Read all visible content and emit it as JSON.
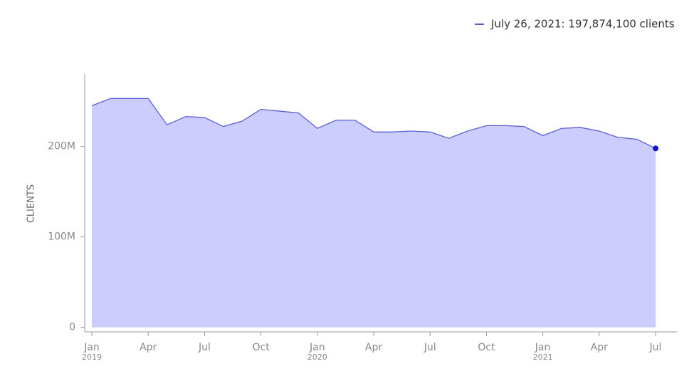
{
  "chart_data": {
    "type": "area",
    "legend_text": "July 26, 2021: 197,874,100 clients",
    "y_label": "CLIENTS",
    "x": [
      "2019-01",
      "2019-02",
      "2019-03",
      "2019-04",
      "2019-05",
      "2019-06",
      "2019-07",
      "2019-08",
      "2019-09",
      "2019-10",
      "2019-11",
      "2019-12",
      "2020-01",
      "2020-02",
      "2020-03",
      "2020-04",
      "2020-05",
      "2020-06",
      "2020-07",
      "2020-08",
      "2020-09",
      "2020-10",
      "2020-11",
      "2020-12",
      "2021-01",
      "2021-02",
      "2021-03",
      "2021-04",
      "2021-05",
      "2021-06",
      "2021-07"
    ],
    "series": [
      {
        "name": "Clients",
        "color": "#5a5fd6",
        "fill": "#cccdfc",
        "values": [
          245000000,
          253000000,
          253000000,
          253000000,
          224000000,
          233000000,
          232000000,
          222000000,
          228000000,
          241000000,
          239000000,
          237000000,
          220000000,
          229000000,
          229000000,
          216000000,
          216000000,
          217000000,
          216000000,
          209000000,
          217000000,
          223000000,
          223000000,
          222000000,
          212000000,
          220000000,
          221000000,
          217000000,
          210000000,
          208000000,
          197874100
        ]
      }
    ],
    "xlim": [
      "2019-01",
      "2021-08"
    ],
    "xticks": [
      {
        "value": "2019-01",
        "label": "Jan",
        "sublabel": "2019"
      },
      {
        "value": "2019-04",
        "label": "Apr"
      },
      {
        "value": "2019-07",
        "label": "Jul"
      },
      {
        "value": "2019-10",
        "label": "Oct"
      },
      {
        "value": "2020-01",
        "label": "Jan",
        "sublabel": "2020"
      },
      {
        "value": "2020-04",
        "label": "Apr"
      },
      {
        "value": "2020-07",
        "label": "Jul"
      },
      {
        "value": "2020-10",
        "label": "Oct"
      },
      {
        "value": "2021-01",
        "label": "Jan",
        "sublabel": "2021"
      },
      {
        "value": "2021-04",
        "label": "Apr"
      },
      {
        "value": "2021-07",
        "label": "Jul"
      }
    ],
    "ylim": [
      -5000000,
      280000000
    ],
    "yticks": [
      {
        "value": 0,
        "label": "0"
      },
      {
        "value": 100000000,
        "label": "100M"
      },
      {
        "value": 200000000,
        "label": "200M"
      }
    ]
  }
}
